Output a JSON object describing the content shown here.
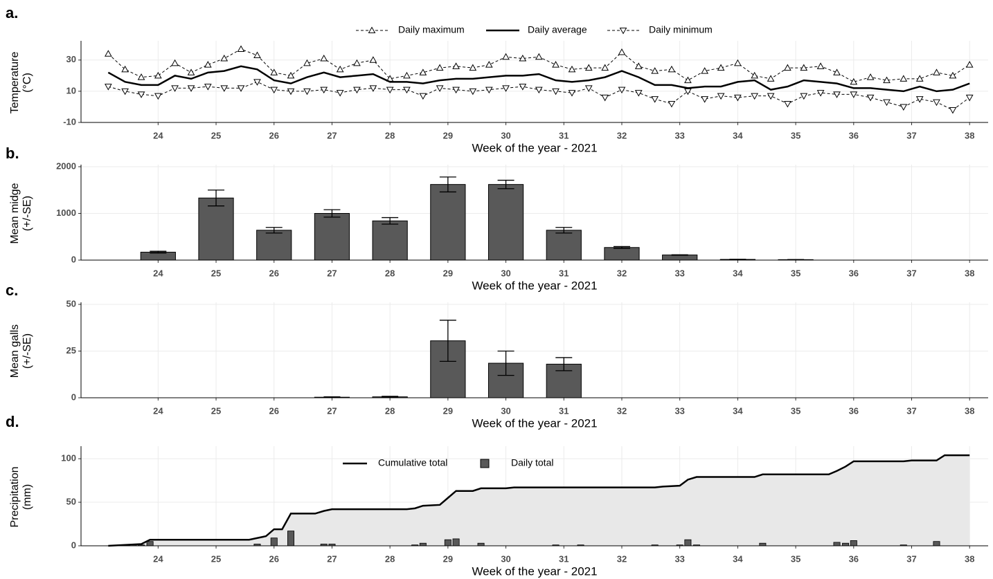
{
  "chart_data": [
    {
      "panel": "a.",
      "type": "line",
      "xlabel": "Week of the year - 2021",
      "ylabel": [
        "Temperature",
        "(°C)"
      ],
      "xlim": [
        22.67,
        38.32
      ],
      "xticks": [
        24,
        25,
        26,
        27,
        28,
        29,
        30,
        31,
        32,
        33,
        34,
        35,
        36,
        37,
        38
      ],
      "ylim": [
        -10,
        41
      ],
      "yticks": [
        -10,
        10,
        30
      ],
      "grid": true,
      "legend": "top",
      "x": [
        23.14,
        23.43,
        23.71,
        24,
        24.29,
        24.57,
        24.86,
        25.14,
        25.43,
        25.71,
        26,
        26.29,
        26.57,
        26.86,
        27.14,
        27.43,
        27.71,
        28,
        28.29,
        28.57,
        28.86,
        29.14,
        29.43,
        29.71,
        30,
        30.29,
        30.57,
        30.86,
        31.14,
        31.43,
        31.71,
        32,
        32.29,
        32.57,
        32.86,
        33.14,
        33.43,
        33.71,
        34,
        34.29,
        34.57,
        34.86,
        35.14,
        35.43,
        35.71,
        36,
        36.29,
        36.57,
        36.86,
        37.14,
        37.43,
        37.71,
        38
      ],
      "series": [
        {
          "name": "Daily maximum",
          "color": "#000000",
          "dash": true,
          "marker": "triangle-up",
          "values": [
            34,
            24,
            19,
            20,
            28,
            22,
            27,
            31,
            37,
            33,
            22,
            20,
            28,
            31,
            24,
            28,
            30,
            18,
            20,
            22,
            25,
            26,
            25,
            27,
            32,
            31,
            32,
            27,
            24,
            25,
            25,
            35,
            26,
            23,
            24,
            17,
            23,
            25,
            28,
            20,
            18,
            25,
            25,
            26,
            22,
            16,
            19,
            17,
            18,
            18,
            22,
            20,
            27
          ]
        },
        {
          "name": "Daily average",
          "color": "#000000",
          "dash": false,
          "marker": "none",
          "values": [
            22,
            16,
            14,
            14,
            20,
            18,
            22,
            23,
            26,
            24,
            17,
            15,
            19,
            22,
            19,
            20,
            21,
            16,
            16,
            15,
            17,
            18,
            18,
            19,
            20,
            20,
            21,
            17,
            16,
            17,
            19,
            23,
            19,
            14,
            14,
            12,
            13,
            13,
            16,
            17,
            11,
            13,
            17,
            16,
            15,
            12,
            12,
            11,
            10,
            13,
            10,
            11,
            15
          ]
        },
        {
          "name": "Daily minimum",
          "color": "#000000",
          "dash": true,
          "marker": "triangle-down",
          "values": [
            13,
            10,
            8,
            7,
            12,
            12,
            13,
            12,
            12,
            16,
            11,
            10,
            10,
            11,
            9,
            11,
            12,
            11,
            11,
            7,
            12,
            11,
            10,
            11,
            12,
            13,
            11,
            10,
            9,
            12,
            6,
            11,
            9,
            5,
            2,
            10,
            5,
            7,
            6,
            7,
            7,
            2,
            7,
            9,
            8,
            8,
            6,
            3,
            0,
            5,
            3,
            -2,
            6
          ]
        }
      ]
    },
    {
      "panel": "b.",
      "type": "bar",
      "xlabel": "Week of the year - 2021",
      "ylabel": [
        "Mean midge",
        "(+/-SE)"
      ],
      "xlim": [
        22.67,
        38.32
      ],
      "xticks": [
        24,
        25,
        26,
        27,
        28,
        29,
        30,
        31,
        32,
        33,
        34,
        35,
        36,
        37,
        38
      ],
      "ylim": [
        0,
        2000
      ],
      "yticks": [
        0,
        1000,
        2000
      ],
      "grid": true,
      "color": "#595959",
      "x": [
        24,
        25,
        26,
        27,
        28,
        29,
        30,
        31,
        32,
        33,
        34,
        35,
        36,
        37,
        38
      ],
      "values": [
        170,
        1330,
        640,
        1000,
        840,
        1620,
        1620,
        640,
        270,
        110,
        15,
        10,
        0,
        0,
        0
      ],
      "errors": [
        20,
        170,
        60,
        80,
        70,
        160,
        90,
        60,
        20,
        5,
        3,
        2,
        0,
        0,
        0
      ]
    },
    {
      "panel": "c.",
      "type": "bar",
      "xlabel": "Week of the year - 2021",
      "ylabel": [
        "Mean galls",
        "(+/-SE)"
      ],
      "xlim": [
        22.67,
        38.32
      ],
      "xticks": [
        24,
        25,
        26,
        27,
        28,
        29,
        30,
        31,
        32,
        33,
        34,
        35,
        36,
        37,
        38
      ],
      "ylim": [
        0,
        50
      ],
      "yticks": [
        0,
        25,
        50
      ],
      "grid": true,
      "color": "#595959",
      "x": [
        24,
        25,
        26,
        27,
        28,
        29,
        30,
        31,
        32,
        33,
        34,
        35,
        36,
        37,
        38
      ],
      "values": [
        0,
        0,
        0,
        0.3,
        0.5,
        30.5,
        18.5,
        18,
        0,
        0,
        0,
        0,
        0,
        0,
        0
      ],
      "errors": [
        0,
        0,
        0,
        0.2,
        0.3,
        11,
        6.5,
        3.5,
        0,
        0,
        0,
        0,
        0,
        0,
        0
      ]
    },
    {
      "panel": "d.",
      "type": "combo",
      "xlabel": "Week of the year - 2021",
      "ylabel": [
        "Precipitation",
        "(mm)"
      ],
      "xlim": [
        22.67,
        38.32
      ],
      "xticks": [
        24,
        25,
        26,
        27,
        28,
        29,
        30,
        31,
        32,
        33,
        34,
        35,
        36,
        37,
        38
      ],
      "ylim": [
        0,
        112
      ],
      "yticks": [
        0,
        50,
        100
      ],
      "grid": true,
      "legend": "top",
      "series": [
        {
          "name": "Cumulative total",
          "type": "area",
          "color": "#000000",
          "fill": "#e8e8e8",
          "x": [
            23.14,
            23.43,
            23.71,
            23.86,
            25.57,
            25.86,
            26,
            26.14,
            26.29,
            26.71,
            26.86,
            27,
            28.29,
            28.43,
            28.57,
            28.86,
            29,
            29.14,
            29.43,
            29.57,
            30,
            30.14,
            32.57,
            32.71,
            33,
            33.14,
            33.29,
            34.29,
            34.43,
            35.57,
            35.71,
            35.86,
            36,
            36.86,
            37,
            37.43,
            37.57,
            38
          ],
          "values": [
            0,
            1,
            2,
            7,
            7,
            11,
            19,
            19,
            37,
            37,
            40,
            42,
            42,
            43,
            46,
            47,
            55,
            63,
            63,
            66,
            66,
            67,
            67,
            68,
            69,
            76,
            79,
            79,
            82,
            82,
            86,
            91,
            97,
            97,
            98,
            98,
            104,
            104
          ]
        },
        {
          "name": "Daily total",
          "type": "bar",
          "color": "#595959",
          "x": [
            23.57,
            23.71,
            23.86,
            25.71,
            26,
            26.29,
            26.86,
            27,
            28.43,
            28.57,
            29,
            29.14,
            29.57,
            30.86,
            31.29,
            32.57,
            33,
            33.14,
            33.29,
            34.43,
            35.71,
            35.86,
            36,
            36.86,
            37.43
          ],
          "values": [
            1,
            1,
            5,
            2,
            9,
            17,
            2,
            2,
            1,
            3,
            7,
            8,
            3,
            1,
            1,
            1,
            1,
            7,
            1,
            3,
            4,
            3,
            6,
            1,
            5
          ]
        }
      ]
    }
  ]
}
